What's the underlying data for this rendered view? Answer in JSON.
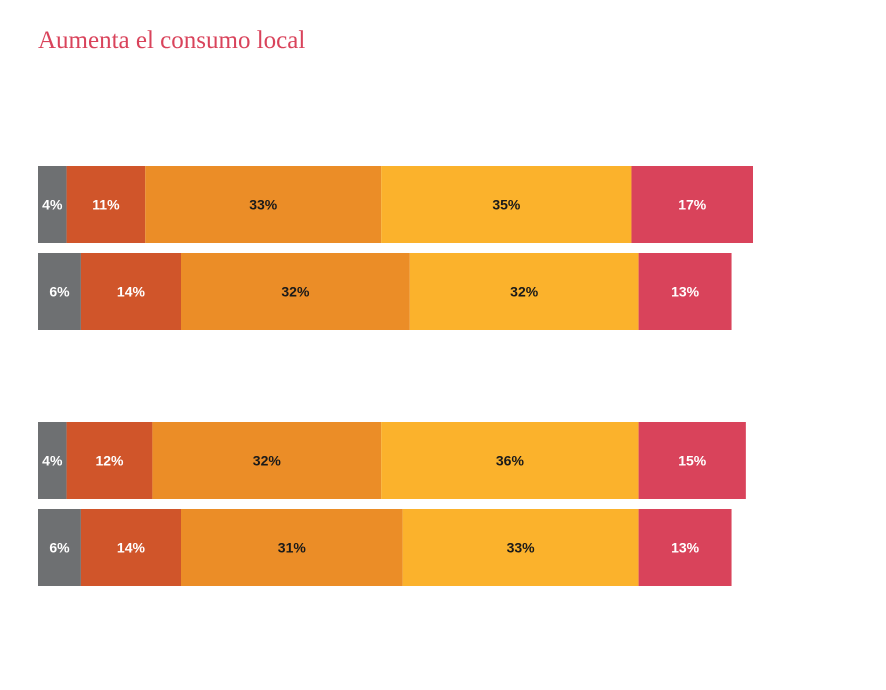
{
  "chart_title": "Aumenta el consumo local",
  "colors": {
    "title": "#d9435b",
    "segments": [
      "#6e7072",
      "#d0552a",
      "#eb8d27",
      "#fbb22c",
      "#d9435b"
    ],
    "label_dark": "#1a1a1a",
    "label_light": "#ffffff"
  },
  "chart_data": {
    "type": "bar",
    "orientation": "horizontal",
    "stacked": true,
    "title": "Aumenta el consumo local",
    "xlabel": "",
    "ylabel": "",
    "xlim": [
      0,
      100
    ],
    "segment_count": 5,
    "groups": [
      {
        "bars": [
          {
            "values": [
              4,
              11,
              33,
              35,
              17
            ],
            "labels": [
              "4%",
              "11%",
              "33%",
              "35%",
              "17%"
            ]
          },
          {
            "values": [
              6,
              14,
              32,
              32,
              13
            ],
            "labels": [
              "6%",
              "14%",
              "32%",
              "32%",
              "13%"
            ]
          }
        ]
      },
      {
        "bars": [
          {
            "values": [
              4,
              12,
              32,
              36,
              15
            ],
            "labels": [
              "4%",
              "12%",
              "32%",
              "36%",
              "15%"
            ]
          },
          {
            "values": [
              6,
              14,
              31,
              33,
              13
            ],
            "labels": [
              "6%",
              "14%",
              "31%",
              "33%",
              "13%"
            ]
          }
        ]
      }
    ]
  }
}
